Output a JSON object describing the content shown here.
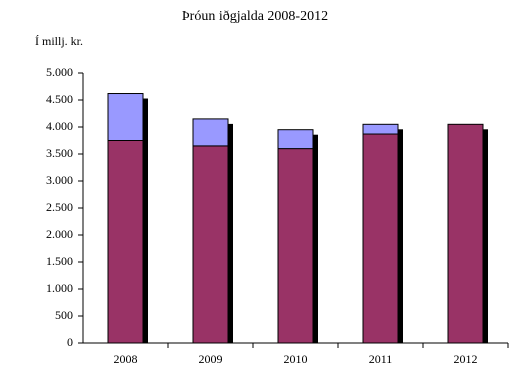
{
  "chart_data": {
    "type": "stacked-bar",
    "title": "Þróun iðgjalda 2008-2012",
    "y_label": "Í millj. kr.",
    "categories": [
      "2008",
      "2009",
      "2010",
      "2011",
      "2012"
    ],
    "series": [
      {
        "color": "#993366",
        "values": [
          3750,
          3650,
          3600,
          3870,
          4050
        ]
      },
      {
        "color": "#9999ff",
        "values": [
          870,
          500,
          350,
          180,
          0
        ]
      }
    ],
    "ylim": [
      0,
      5000
    ],
    "yticks": [
      0,
      500,
      {
        "value": 1000,
        "label": "1.000"
      },
      {
        "value": 1500,
        "label": "1.500"
      },
      {
        "value": 2000,
        "label": "2.000"
      },
      {
        "value": 2500,
        "label": "2.500"
      },
      {
        "value": 3000,
        "label": "3.000"
      },
      {
        "value": 3500,
        "label": "3.500"
      },
      {
        "value": 4000,
        "label": "4.000"
      },
      {
        "value": 4500,
        "label": "4.500"
      },
      {
        "value": 5000,
        "label": "5.000"
      }
    ],
    "grid": false,
    "shadow": true
  }
}
